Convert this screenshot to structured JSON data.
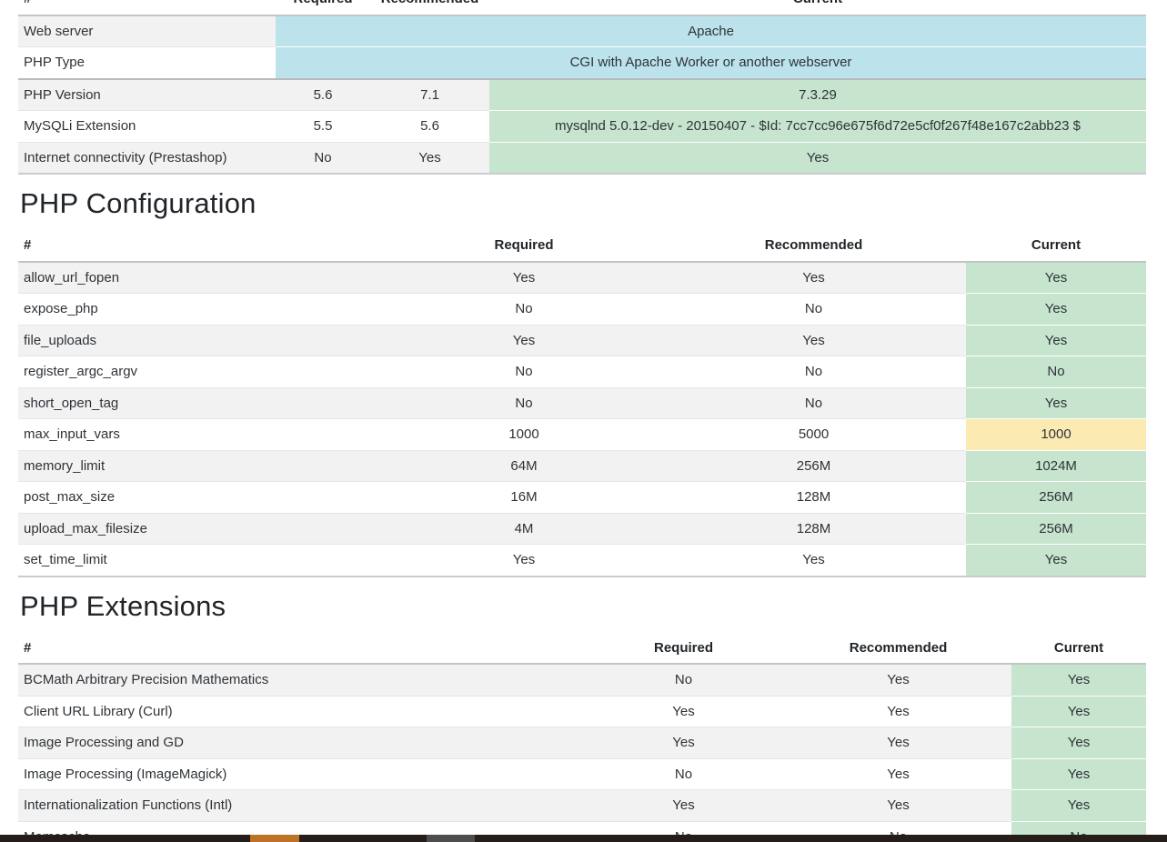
{
  "colors": {
    "success_cell": "#c6e4ce",
    "warning_cell": "#fceab3",
    "info_cell": "#bce3eb",
    "stripe_row": "#f2f2f2",
    "taskbar": "#241d19",
    "taskbar_orange_segment": "#bd7226",
    "taskbar_gray_segment": "#4d4d4d"
  },
  "tables": {
    "system": {
      "headers": [
        "#",
        "Required",
        "Recommended",
        "Current"
      ],
      "rows": [
        {
          "name": "Web server",
          "required": "",
          "recommended": "",
          "current": "Apache",
          "status": "info",
          "span": true
        },
        {
          "name": "PHP Type",
          "required": "",
          "recommended": "",
          "current": "CGI with Apache Worker or another webserver",
          "status": "info",
          "span": true
        },
        {
          "name": "PHP Version",
          "required": "5.6",
          "recommended": "7.1",
          "current": "7.3.29",
          "status": "success",
          "thick_top": true
        },
        {
          "name": "MySQLi Extension",
          "required": "5.5",
          "recommended": "5.6",
          "current": "mysqlnd 5.0.12-dev - 20150407 - $Id: 7cc7cc96e675f6d72e5cf0f267f48e167c2abb23 $",
          "status": "success"
        },
        {
          "name": "Internet connectivity (Prestashop)",
          "required": "No",
          "recommended": "Yes",
          "current": "Yes",
          "status": "success"
        }
      ]
    },
    "php_configuration": {
      "title": "PHP Configuration",
      "headers": [
        "#",
        "Required",
        "Recommended",
        "Current"
      ],
      "rows": [
        {
          "name": "allow_url_fopen",
          "required": "Yes",
          "recommended": "Yes",
          "current": "Yes",
          "status": "success"
        },
        {
          "name": "expose_php",
          "required": "No",
          "recommended": "No",
          "current": "Yes",
          "status": "success"
        },
        {
          "name": "file_uploads",
          "required": "Yes",
          "recommended": "Yes",
          "current": "Yes",
          "status": "success"
        },
        {
          "name": "register_argc_argv",
          "required": "No",
          "recommended": "No",
          "current": "No",
          "status": "success"
        },
        {
          "name": "short_open_tag",
          "required": "No",
          "recommended": "No",
          "current": "Yes",
          "status": "success"
        },
        {
          "name": "max_input_vars",
          "required": "1000",
          "recommended": "5000",
          "current": "1000",
          "status": "warning"
        },
        {
          "name": "memory_limit",
          "required": "64M",
          "recommended": "256M",
          "current": "1024M",
          "status": "success"
        },
        {
          "name": "post_max_size",
          "required": "16M",
          "recommended": "128M",
          "current": "256M",
          "status": "success"
        },
        {
          "name": "upload_max_filesize",
          "required": "4M",
          "recommended": "128M",
          "current": "256M",
          "status": "success"
        },
        {
          "name": "set_time_limit",
          "required": "Yes",
          "recommended": "Yes",
          "current": "Yes",
          "status": "success"
        }
      ]
    },
    "php_extensions": {
      "title": "PHP Extensions",
      "headers": [
        "#",
        "Required",
        "Recommended",
        "Current"
      ],
      "rows": [
        {
          "name": "BCMath Arbitrary Precision Mathematics",
          "required": "No",
          "recommended": "Yes",
          "current": "Yes",
          "status": "success"
        },
        {
          "name": "Client URL Library (Curl)",
          "required": "Yes",
          "recommended": "Yes",
          "current": "Yes",
          "status": "success"
        },
        {
          "name": "Image Processing and GD",
          "required": "Yes",
          "recommended": "Yes",
          "current": "Yes",
          "status": "success"
        },
        {
          "name": "Image Processing (ImageMagick)",
          "required": "No",
          "recommended": "Yes",
          "current": "Yes",
          "status": "success"
        },
        {
          "name": "Internationalization Functions (Intl)",
          "required": "Yes",
          "recommended": "Yes",
          "current": "Yes",
          "status": "success"
        },
        {
          "name": "Memcache",
          "required": "No",
          "recommended": "No",
          "current": "No",
          "status": "success"
        }
      ]
    }
  }
}
